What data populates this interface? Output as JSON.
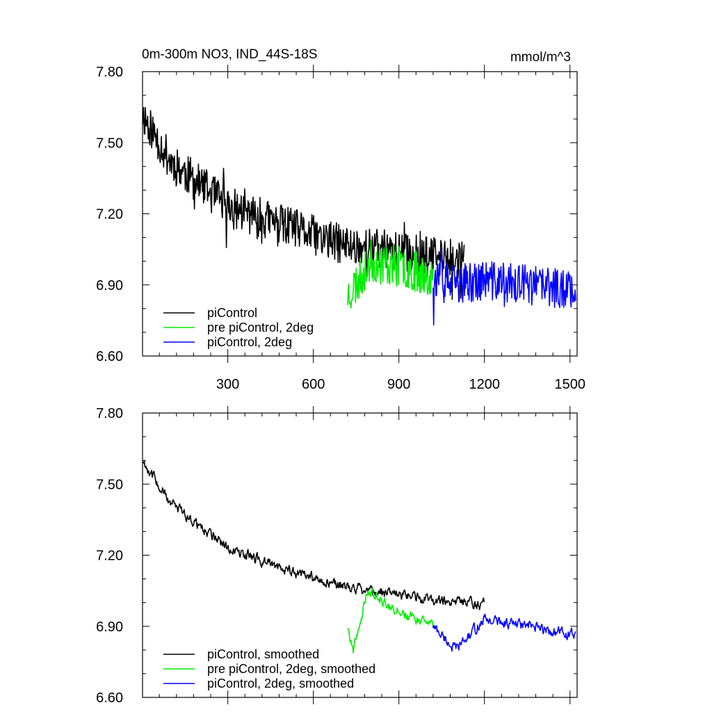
{
  "figure": {
    "title_left": "0m-300m NO3, IND_44S-18S",
    "title_right": "mmol/m^3"
  },
  "chart_data": [
    {
      "type": "line",
      "ylim": [
        6.6,
        7.8
      ],
      "xlim": [
        1,
        1525
      ],
      "yticks": [
        "6.60",
        "6.90",
        "7.20",
        "7.50",
        "7.80"
      ],
      "ytick_values": [
        6.6,
        6.9,
        7.2,
        7.5,
        7.8
      ],
      "xticks": [
        "300",
        "600",
        "900",
        "1200",
        "1500"
      ],
      "xtick_values": [
        300,
        600,
        900,
        1200,
        1500
      ],
      "show_xtick_labels": true,
      "legend_placement": "bottom-left",
      "series": [
        {
          "name": "piControl",
          "color": "#000000",
          "x_start": 1,
          "x_end": 1130,
          "noise": 0.085,
          "seed": 11,
          "trend_x": [
            1,
            100,
            300,
            500,
            700,
            900,
            1130
          ],
          "trend_y": [
            7.62,
            7.42,
            7.23,
            7.15,
            7.07,
            7.04,
            7.0
          ]
        },
        {
          "name": "pre piControl, 2deg",
          "color": "#00ee00",
          "x_start": 720,
          "x_end": 1020,
          "noise": 0.09,
          "seed": 23,
          "trend_x": [
            720,
            760,
            800,
            900,
            1020
          ],
          "trend_y": [
            6.86,
            6.92,
            7.0,
            6.98,
            6.94
          ]
        },
        {
          "name": "piControl, 2deg",
          "color": "#0000ff",
          "x_start": 1020,
          "x_end": 1520,
          "noise": 0.085,
          "seed": 37,
          "trend_x": [
            1020,
            1100,
            1200,
            1350,
            1520
          ],
          "trend_y": [
            6.93,
            6.9,
            6.92,
            6.9,
            6.88
          ]
        }
      ]
    },
    {
      "type": "line",
      "ylim": [
        6.6,
        7.8
      ],
      "xlim": [
        1,
        1525
      ],
      "yticks": [
        "6.60",
        "6.90",
        "7.20",
        "7.50",
        "7.80"
      ],
      "ytick_values": [
        6.6,
        6.9,
        7.2,
        7.5,
        7.8
      ],
      "xticks": [
        "300",
        "600",
        "900",
        "1200",
        "1500"
      ],
      "xtick_values": [
        300,
        600,
        900,
        1200,
        1500
      ],
      "show_xtick_labels": false,
      "legend_placement": "bottom-left",
      "series": [
        {
          "name": "piControl, smoothed",
          "color": "#000000",
          "x_start": 1,
          "x_end": 1200,
          "noise": 0.04,
          "seed": 11,
          "trend_x": [
            1,
            100,
            300,
            500,
            700,
            900,
            1200
          ],
          "trend_y": [
            7.6,
            7.42,
            7.23,
            7.14,
            7.07,
            7.03,
            6.99
          ]
        },
        {
          "name": "pre piControl, 2deg, smoothed",
          "color": "#00ee00",
          "x_start": 720,
          "x_end": 1020,
          "noise": 0.04,
          "seed": 23,
          "trend_x": [
            720,
            740,
            790,
            900,
            1020
          ],
          "trend_y": [
            6.9,
            6.8,
            7.05,
            6.96,
            6.9
          ]
        },
        {
          "name": "piControl, 2deg, smoothed",
          "color": "#0000ff",
          "x_start": 1020,
          "x_end": 1520,
          "noise": 0.04,
          "seed": 37,
          "trend_x": [
            1020,
            1100,
            1200,
            1350,
            1520
          ],
          "trend_y": [
            6.9,
            6.8,
            6.93,
            6.9,
            6.86
          ]
        }
      ]
    }
  ]
}
